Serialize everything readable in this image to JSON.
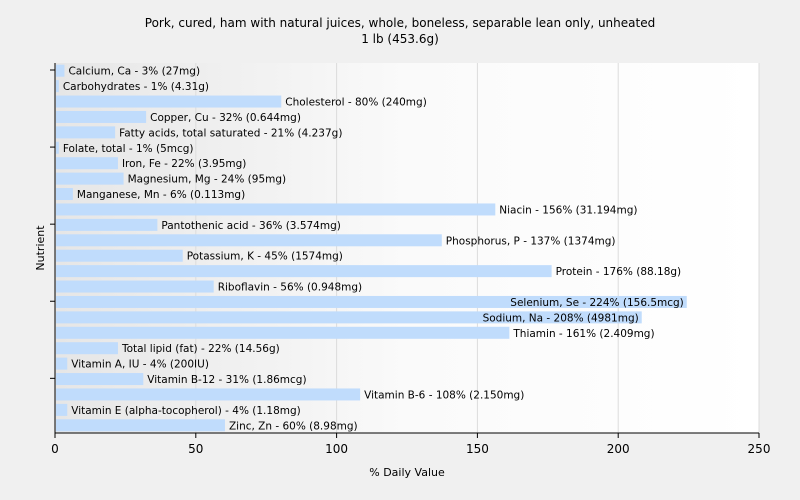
{
  "chart_data": {
    "type": "bar",
    "orientation": "horizontal",
    "title": "Pork, cured, ham with natural juices, whole, boneless, separable lean only, unheated",
    "subtitle": "1 lb (453.6g)",
    "xlabel": "% Daily Value",
    "ylabel": "Nutrient",
    "xlim": [
      0,
      250
    ],
    "xticks": [
      0,
      50,
      100,
      150,
      200,
      250
    ],
    "grid": true,
    "bar_color": "#c0dcfc",
    "categories": [
      "Calcium, Ca",
      "Carbohydrates",
      "Cholesterol",
      "Copper, Cu",
      "Fatty acids, total saturated",
      "Folate, total",
      "Iron, Fe",
      "Magnesium, Mg",
      "Manganese, Mn",
      "Niacin",
      "Pantothenic acid",
      "Phosphorus, P",
      "Potassium, K",
      "Protein",
      "Riboflavin",
      "Selenium, Se",
      "Sodium, Na",
      "Thiamin",
      "Total lipid (fat)",
      "Vitamin A, IU",
      "Vitamin B-12",
      "Vitamin B-6",
      "Vitamin E (alpha-tocopherol)",
      "Zinc, Zn"
    ],
    "values": [
      3,
      1,
      80,
      32,
      21,
      1,
      22,
      24,
      6,
      156,
      36,
      137,
      45,
      176,
      56,
      224,
      208,
      161,
      22,
      4,
      31,
      108,
      4,
      60
    ],
    "labels": [
      "Calcium, Ca - 3% (27mg)",
      "Carbohydrates - 1% (4.31g)",
      "Cholesterol - 80% (240mg)",
      "Copper, Cu - 32% (0.644mg)",
      "Fatty acids, total saturated - 21% (4.237g)",
      "Folate, total - 1% (5mcg)",
      "Iron, Fe - 22% (3.95mg)",
      "Magnesium, Mg - 24% (95mg)",
      "Manganese, Mn - 6% (0.113mg)",
      "Niacin - 156% (31.194mg)",
      "Pantothenic acid - 36% (3.574mg)",
      "Phosphorus, P - 137% (1374mg)",
      "Potassium, K - 45% (1574mg)",
      "Protein - 176% (88.18g)",
      "Riboflavin - 56% (0.948mg)",
      "Selenium, Se - 224% (156.5mcg)",
      "Sodium, Na - 208% (4981mg)",
      "Thiamin - 161% (2.409mg)",
      "Total lipid (fat) - 22% (14.56g)",
      "Vitamin A, IU - 4% (200IU)",
      "Vitamin B-12 - 31% (1.86mcg)",
      "Vitamin B-6 - 108% (2.150mg)",
      "Vitamin E (alpha-tocopherol) - 4% (1.18mg)",
      "Zinc, Zn - 60% (8.98mg)"
    ]
  }
}
